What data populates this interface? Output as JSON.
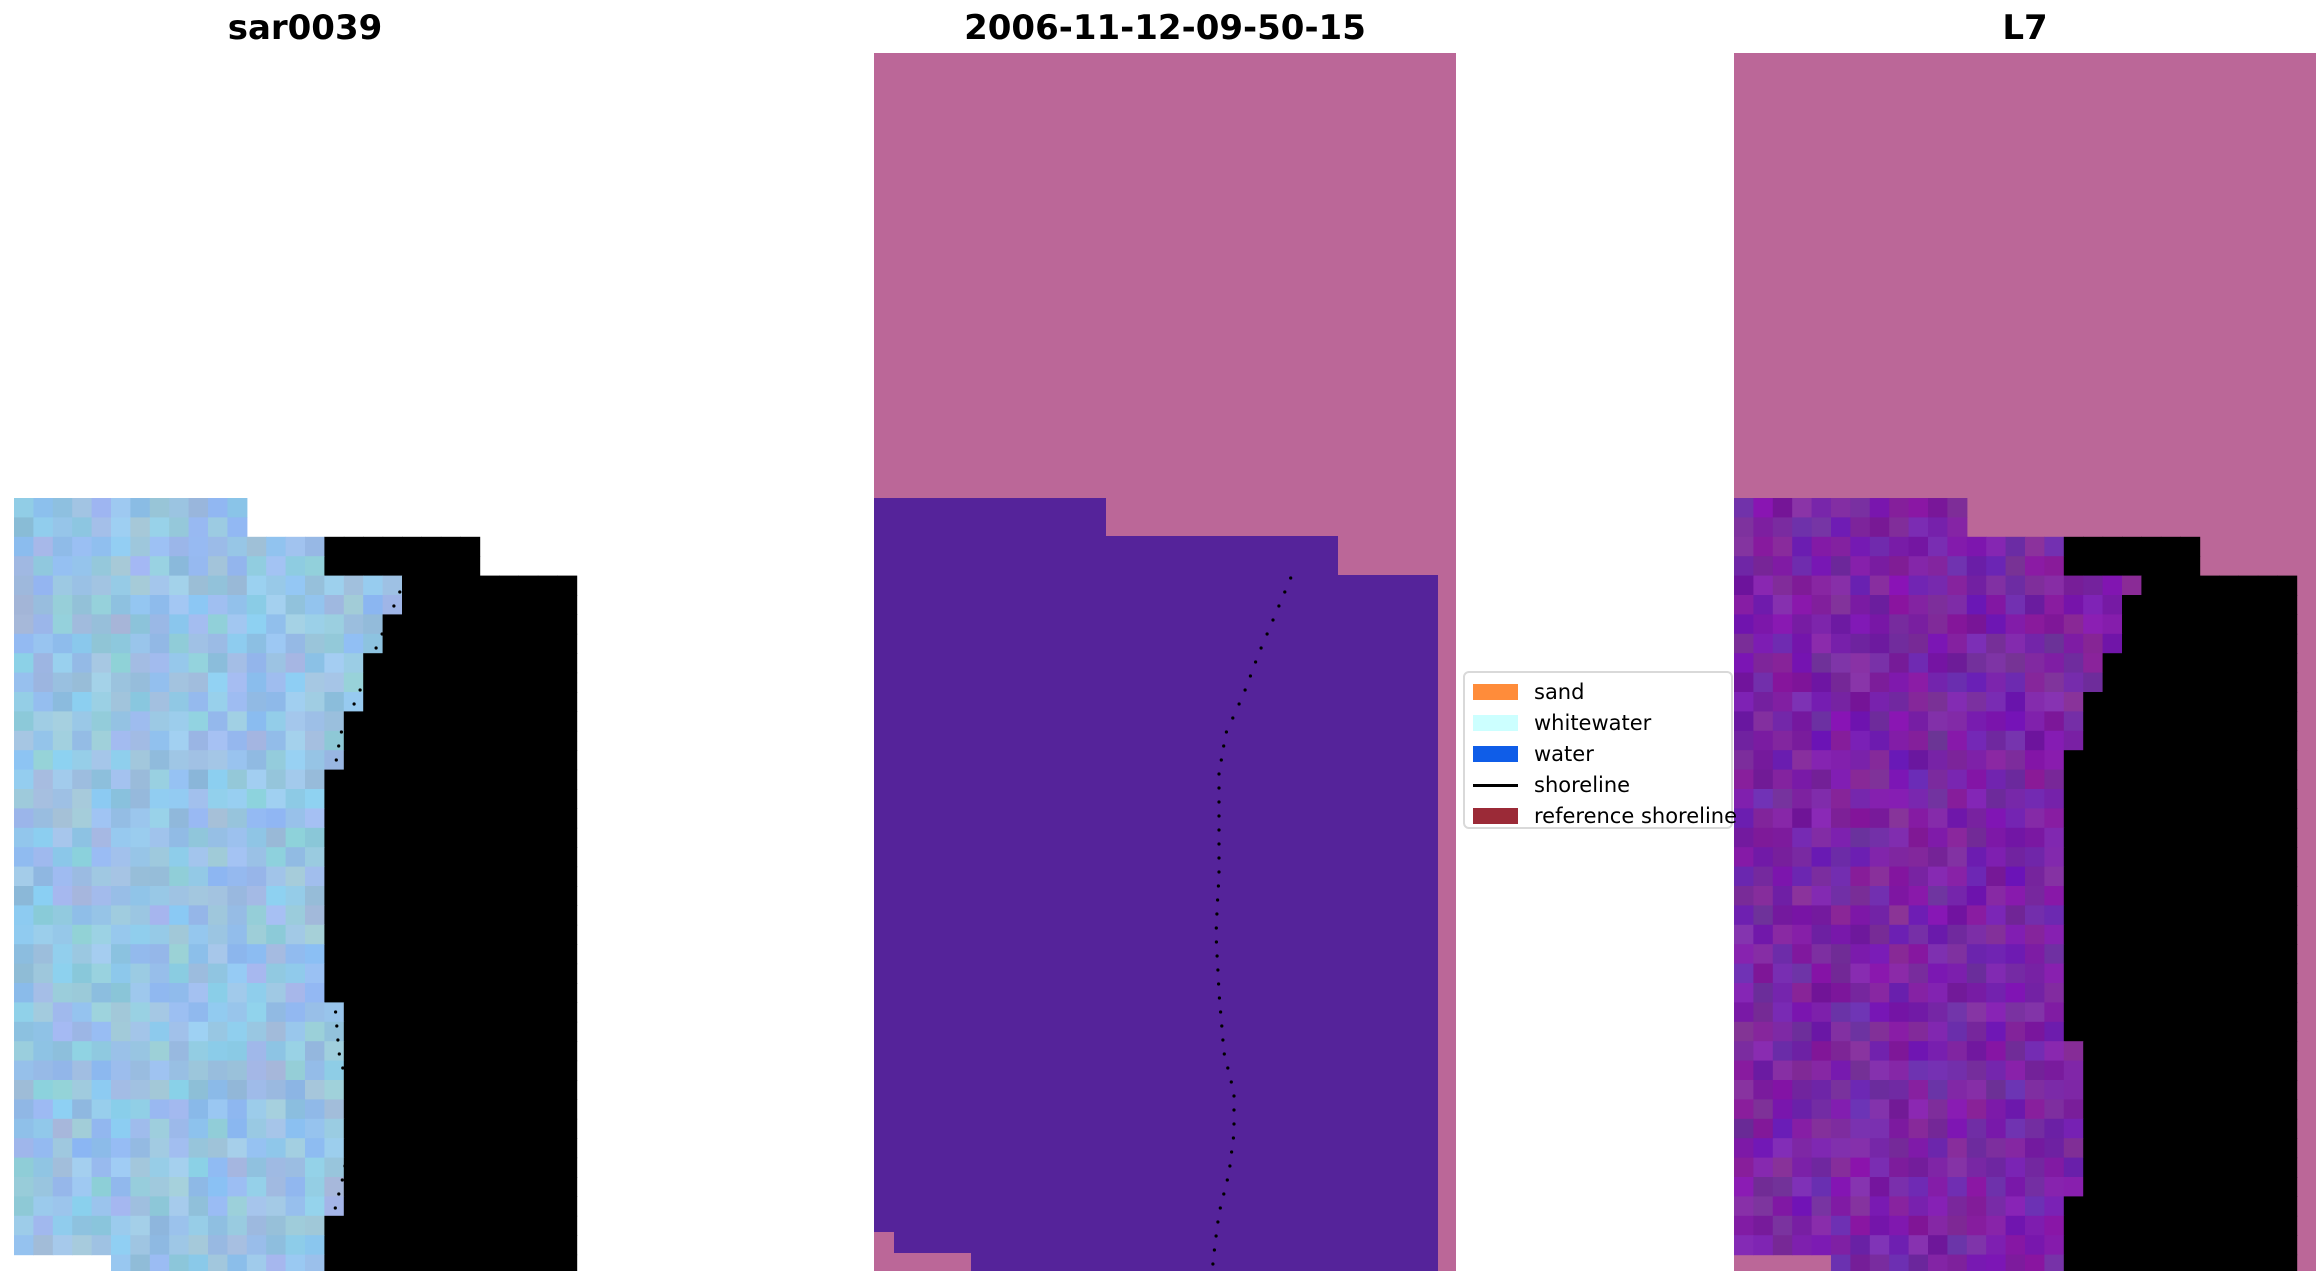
{
  "panels": [
    {
      "title": "sar0039"
    },
    {
      "title": "2006-11-12-09-50-15"
    },
    {
      "title": "L7"
    }
  ],
  "legend": {
    "items": [
      {
        "label": "sand",
        "color": "#ff8c3a",
        "kind": "patch"
      },
      {
        "label": "whitewater",
        "color": "#ccffff",
        "kind": "patch"
      },
      {
        "label": "water",
        "color": "#0f5de8",
        "kind": "patch"
      },
      {
        "label": "shoreline",
        "color": "#000000",
        "kind": "line"
      },
      {
        "label": "reference shoreline",
        "color": "#9b2a37",
        "kind": "patch"
      }
    ]
  },
  "colors": {
    "nodata_mask": "#bb6798",
    "water_class": "#55239a",
    "rgb_water": "#98c4e5",
    "rgb_whitewater": "#dff1f4",
    "ndwi_water": "#7a24a6",
    "ndwi_land": "#d02a55"
  }
}
